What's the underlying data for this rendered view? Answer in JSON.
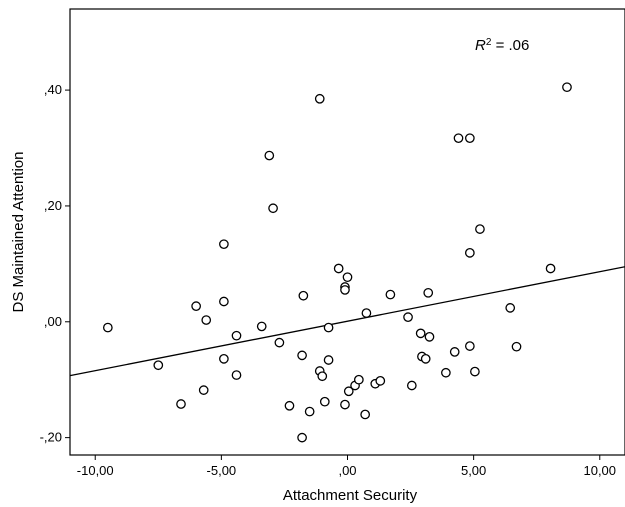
{
  "chart_data": {
    "type": "scatter",
    "xlabel": "Attachment Security",
    "ylabel": "DS Maintained Attention",
    "xlim": [
      -11,
      11
    ],
    "ylim": [
      -0.23,
      0.54
    ],
    "x_ticks": [
      {
        "value": -10,
        "label": "-10,00"
      },
      {
        "value": -5,
        "label": "-5,00"
      },
      {
        "value": 0,
        "label": ",00"
      },
      {
        "value": 5,
        "label": "5,00"
      },
      {
        "value": 10,
        "label": "10,00"
      }
    ],
    "y_ticks": [
      {
        "value": -0.2,
        "label": "-,20"
      },
      {
        "value": 0,
        "label": ",00"
      },
      {
        "value": 0.2,
        "label": ",20"
      },
      {
        "value": 0.4,
        "label": ",40"
      }
    ],
    "annotation": {
      "r_label": "R",
      "sup": "2",
      "rest": " = .06"
    },
    "grid": false,
    "marker": "open-circle",
    "fit_line": {
      "x": [
        -11,
        11
      ],
      "y": [
        -0.093,
        0.095
      ]
    },
    "points": [
      {
        "x": -9.5,
        "y": -0.01
      },
      {
        "x": -7.5,
        "y": -0.075
      },
      {
        "x": -6.6,
        "y": -0.142
      },
      {
        "x": -6.0,
        "y": 0.027
      },
      {
        "x": -5.7,
        "y": -0.118
      },
      {
        "x": -5.6,
        "y": 0.003
      },
      {
        "x": -4.9,
        "y": 0.134
      },
      {
        "x": -4.9,
        "y": 0.035
      },
      {
        "x": -4.9,
        "y": -0.064
      },
      {
        "x": -4.4,
        "y": -0.024
      },
      {
        "x": -4.4,
        "y": -0.092
      },
      {
        "x": -3.4,
        "y": -0.008
      },
      {
        "x": -3.1,
        "y": 0.287
      },
      {
        "x": -2.95,
        "y": 0.196
      },
      {
        "x": -2.7,
        "y": -0.036
      },
      {
        "x": -2.3,
        "y": -0.145
      },
      {
        "x": -1.8,
        "y": -0.058
      },
      {
        "x": -1.75,
        "y": 0.045
      },
      {
        "x": -1.8,
        "y": -0.2
      },
      {
        "x": -1.5,
        "y": -0.155
      },
      {
        "x": -1.1,
        "y": 0.385
      },
      {
        "x": -1.1,
        "y": -0.085
      },
      {
        "x": -1.0,
        "y": -0.094
      },
      {
        "x": -0.9,
        "y": -0.138
      },
      {
        "x": -0.75,
        "y": -0.066
      },
      {
        "x": -0.75,
        "y": -0.01
      },
      {
        "x": -0.35,
        "y": 0.092
      },
      {
        "x": -0.1,
        "y": -0.143
      },
      {
        "x": -0.1,
        "y": 0.06
      },
      {
        "x": -0.1,
        "y": 0.055
      },
      {
        "x": 0.0,
        "y": 0.077
      },
      {
        "x": 0.05,
        "y": -0.12
      },
      {
        "x": 0.3,
        "y": -0.11
      },
      {
        "x": 0.45,
        "y": -0.1
      },
      {
        "x": 0.7,
        "y": -0.16
      },
      {
        "x": 0.75,
        "y": 0.015
      },
      {
        "x": 1.1,
        "y": -0.107
      },
      {
        "x": 1.3,
        "y": -0.102
      },
      {
        "x": 1.7,
        "y": 0.047
      },
      {
        "x": 2.4,
        "y": 0.008
      },
      {
        "x": 2.55,
        "y": -0.11
      },
      {
        "x": 2.9,
        "y": -0.02
      },
      {
        "x": 2.95,
        "y": -0.06
      },
      {
        "x": 3.1,
        "y": -0.064
      },
      {
        "x": 3.2,
        "y": 0.05
      },
      {
        "x": 3.25,
        "y": -0.026
      },
      {
        "x": 3.9,
        "y": -0.088
      },
      {
        "x": 4.25,
        "y": -0.052
      },
      {
        "x": 4.4,
        "y": 0.317
      },
      {
        "x": 4.85,
        "y": 0.317
      },
      {
        "x": 4.85,
        "y": 0.119
      },
      {
        "x": 4.85,
        "y": -0.042
      },
      {
        "x": 5.05,
        "y": -0.086
      },
      {
        "x": 5.25,
        "y": 0.16
      },
      {
        "x": 6.45,
        "y": 0.024
      },
      {
        "x": 6.7,
        "y": -0.043
      },
      {
        "x": 8.05,
        "y": 0.092
      },
      {
        "x": 8.7,
        "y": 0.405
      }
    ]
  }
}
